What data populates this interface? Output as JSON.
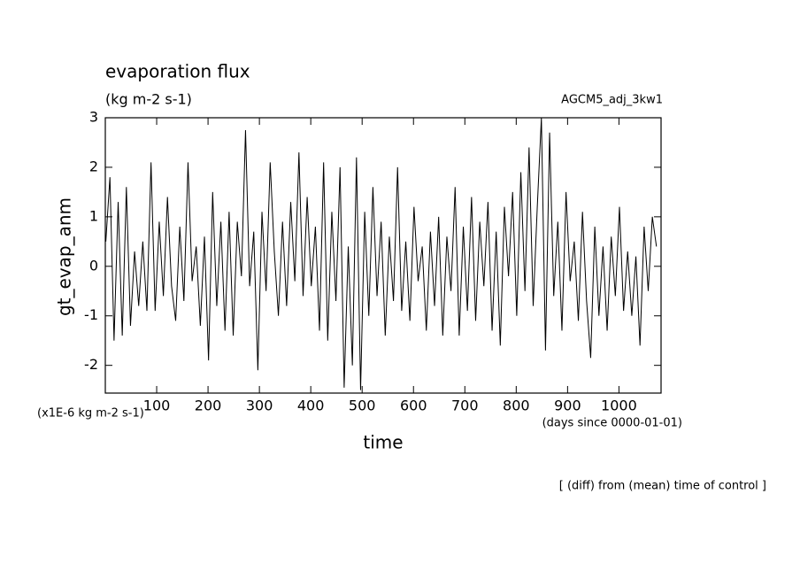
{
  "chart_data": {
    "type": "line",
    "title": "evaporation flux",
    "subtitle": "(kg m-2 s-1)",
    "experiment": "AGCM5_adj_3kw1",
    "y_label": "gt_evap_anm",
    "y_unit_label": "(x1E-6 kg m-2 s-1)",
    "x_label": "time",
    "x_unit_label": "(days since 0000-01-01)",
    "footnote": "[ (diff) from (mean) time of control ]",
    "xlim": [
      0,
      1082
    ],
    "ylim": [
      -2.56,
      3
    ],
    "xticks": [
      100,
      200,
      300,
      400,
      500,
      600,
      700,
      800,
      900,
      1000
    ],
    "yticks": [
      -2,
      -1,
      0,
      1,
      2,
      3
    ],
    "color": "#000000",
    "x": [
      1,
      9,
      17,
      25,
      33,
      41,
      49,
      57,
      65,
      73,
      81,
      89,
      97,
      105,
      113,
      121,
      129,
      137,
      145,
      153,
      161,
      169,
      177,
      185,
      193,
      201,
      209,
      217,
      225,
      233,
      241,
      249,
      257,
      265,
      273,
      281,
      289,
      297,
      305,
      313,
      321,
      329,
      337,
      345,
      353,
      361,
      369,
      377,
      385,
      393,
      401,
      409,
      417,
      425,
      433,
      441,
      449,
      457,
      465,
      473,
      481,
      489,
      497,
      505,
      513,
      521,
      529,
      537,
      545,
      553,
      561,
      569,
      577,
      585,
      593,
      601,
      609,
      617,
      625,
      633,
      641,
      649,
      657,
      665,
      673,
      681,
      689,
      697,
      705,
      713,
      721,
      729,
      737,
      745,
      753,
      761,
      769,
      777,
      785,
      793,
      801,
      809,
      817,
      825,
      833,
      841,
      849,
      857,
      865,
      873,
      881,
      889,
      897,
      905,
      913,
      921,
      929,
      937,
      945,
      953,
      961,
      969,
      977,
      985,
      993,
      1001,
      1009,
      1017,
      1025,
      1033,
      1041,
      1049,
      1057,
      1065,
      1073
    ],
    "values": [
      0.5,
      1.8,
      -1.5,
      1.3,
      -1.4,
      1.6,
      -1.2,
      0.3,
      -0.8,
      0.5,
      -0.9,
      2.1,
      -0.9,
      0.9,
      -0.6,
      1.4,
      -0.4,
      -1.1,
      0.8,
      -0.7,
      2.1,
      -0.3,
      0.4,
      -1.2,
      0.6,
      -1.9,
      1.5,
      -0.8,
      0.9,
      -1.3,
      1.1,
      -1.4,
      0.9,
      -0.2,
      2.75,
      -0.4,
      0.7,
      -2.1,
      1.1,
      -0.5,
      2.1,
      0.3,
      -1.0,
      0.9,
      -0.8,
      1.3,
      -0.3,
      2.3,
      -0.6,
      1.4,
      -0.4,
      0.8,
      -1.3,
      2.1,
      -1.5,
      1.1,
      -0.7,
      2.0,
      -2.45,
      0.4,
      -2.0,
      2.2,
      -2.5,
      1.1,
      -1.0,
      1.6,
      -0.6,
      0.9,
      -1.4,
      0.6,
      -0.7,
      2.0,
      -0.9,
      0.5,
      -1.1,
      1.2,
      -0.3,
      0.4,
      -1.3,
      0.7,
      -0.8,
      1.0,
      -1.4,
      0.6,
      -0.5,
      1.6,
      -1.4,
      0.8,
      -0.9,
      1.4,
      -1.1,
      0.9,
      -0.4,
      1.3,
      -1.3,
      0.7,
      -1.6,
      1.2,
      -0.2,
      1.5,
      -1.0,
      1.9,
      -0.5,
      2.4,
      -0.8,
      1.2,
      3.0,
      -1.7,
      2.7,
      -0.6,
      0.9,
      -1.3,
      1.5,
      -0.3,
      0.5,
      -1.1,
      1.1,
      -0.7,
      -1.85,
      0.8,
      -1.0,
      0.4,
      -1.3,
      0.6,
      -0.6,
      1.2,
      -0.9,
      0.3,
      -1.0,
      0.2,
      -1.6,
      0.8,
      -0.5,
      1.0,
      0.4
    ]
  }
}
